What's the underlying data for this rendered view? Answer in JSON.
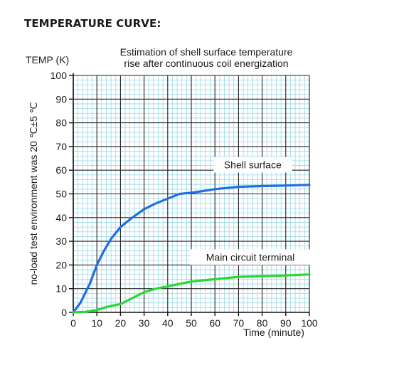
{
  "page": {
    "heading": "TEMPERATURE CURVE:"
  },
  "chart_data": {
    "type": "line",
    "title": "Estimation of shell surface temperature\nrise after continuous coil energization",
    "ylabel_top": "TEMP (K)",
    "ylabel_side": "no-load test environment was 20 ℃±5 ℃",
    "xlabel": "Time (minute)",
    "xlim": [
      0,
      100
    ],
    "ylim": [
      0,
      100
    ],
    "xticks": [
      0,
      10,
      20,
      30,
      40,
      50,
      60,
      70,
      80,
      90,
      100
    ],
    "yticks": [
      0,
      10,
      20,
      30,
      40,
      50,
      60,
      70,
      80,
      90,
      100
    ],
    "grid": true,
    "series": [
      {
        "name": "Shell surface",
        "color": "#1e6fe0",
        "x": [
          0,
          3,
          7,
          10,
          13,
          16,
          20,
          25,
          30,
          35,
          40,
          45,
          50,
          55,
          60,
          70,
          80,
          90,
          100
        ],
        "y": [
          0,
          4,
          12,
          20,
          26,
          31,
          36,
          40,
          43.5,
          46,
          48,
          50,
          50.5,
          51.2,
          52,
          53,
          53.3,
          53.5,
          53.8
        ]
      },
      {
        "name": "Main circuit terminal",
        "color": "#28d832",
        "x": [
          0,
          5,
          10,
          15,
          20,
          25,
          30,
          35,
          40,
          45,
          50,
          55,
          60,
          70,
          80,
          90,
          100
        ],
        "y": [
          0,
          0.2,
          1,
          2.5,
          3.5,
          6,
          8.5,
          10,
          11,
          12,
          13,
          13.5,
          14,
          15,
          15.3,
          15.6,
          16
        ]
      }
    ],
    "annotations": [
      {
        "text": "Shell surface",
        "x": 76,
        "y": 62,
        "series": 0
      },
      {
        "text": "Main circuit terminal",
        "x": 75,
        "y": 23,
        "series": 1
      }
    ]
  }
}
